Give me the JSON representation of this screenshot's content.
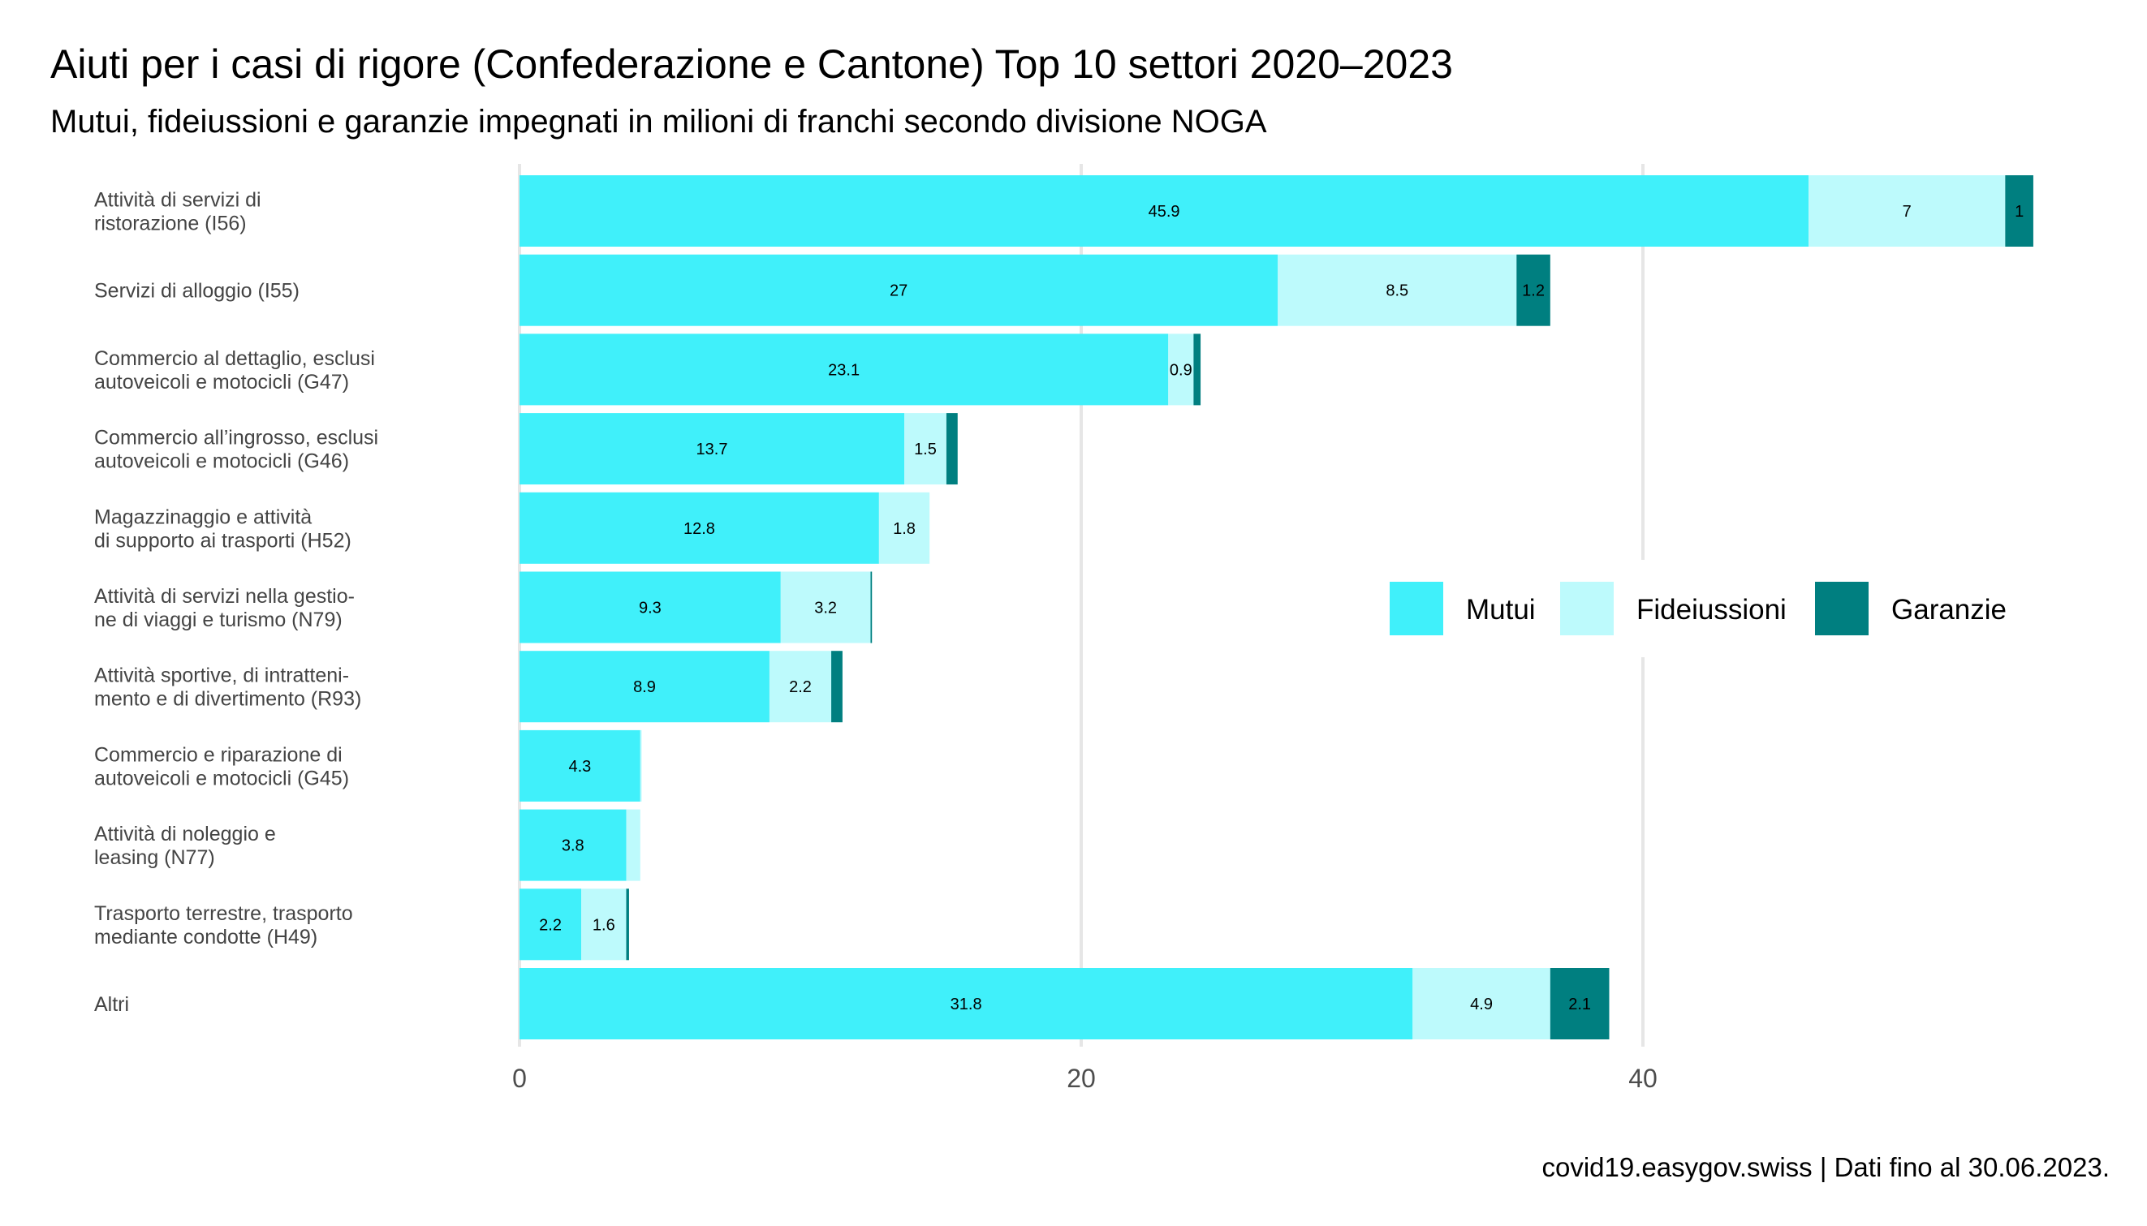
{
  "chart_data": {
    "type": "bar",
    "orientation": "horizontal",
    "stacked": true,
    "title": "Aiuti per i casi di rigore (Confederazione e Cantone) Top 10 settori 2020–2023",
    "subtitle": "Mutui, fideiussioni e garanzie impegnati in milioni di franchi secondo divisione NOGA",
    "caption": "covid19.easygov.swiss | Dati fino al 30.06.2023.",
    "categories": [
      [
        "Attività di servizi di",
        "ristorazione (I56)"
      ],
      [
        "Servizi di alloggio (I55)"
      ],
      [
        "Commercio al dettaglio, esclusi",
        "autoveicoli e motocicli (G47)"
      ],
      [
        "Commercio all’ingrosso, esclusi",
        "autoveicoli e motocicli (G46)"
      ],
      [
        "Magazzinaggio e attività",
        "di supporto ai trasporti (H52)"
      ],
      [
        "Attività di servizi nella gestio-",
        "ne di viaggi e turismo (N79)"
      ],
      [
        "Attività sportive, di intratteni-",
        "mento e di divertimento (R93)"
      ],
      [
        "Commercio e riparazione di",
        "autoveicoli e motocicli (G45)"
      ],
      [
        "Attività di noleggio e",
        "leasing (N77)"
      ],
      [
        "Trasporto terrestre, trasporto",
        "mediante condotte (H49)"
      ],
      [
        "Altri"
      ]
    ],
    "series": [
      {
        "name": "Mutui",
        "color": "#40F0FA",
        "values": [
          45.9,
          27,
          23.1,
          13.7,
          12.8,
          9.3,
          8.9,
          4.3,
          3.8,
          2.2,
          31.8
        ],
        "labels": [
          "45.9",
          "27",
          "23.1",
          "13.7",
          "12.8",
          "9.3",
          "8.9",
          "4.3",
          "3.8",
          "2.2",
          "31.8"
        ]
      },
      {
        "name": "Fideiussioni",
        "color": "#BDFAFC",
        "values": [
          7,
          8.5,
          0.9,
          1.5,
          1.8,
          3.2,
          2.2,
          0.05,
          0.5,
          1.6,
          4.9
        ],
        "labels": [
          "7",
          "8.5",
          "0.9",
          "1.5",
          "1.8",
          "3.2",
          "2.2",
          "",
          "",
          "1.6",
          "4.9"
        ]
      },
      {
        "name": "Garanzie",
        "color": "#007F80",
        "values": [
          1,
          1.2,
          0.25,
          0.4,
          0,
          0.05,
          0.4,
          0,
          0,
          0.1,
          2.1
        ],
        "labels": [
          "1",
          "1.2",
          "",
          "",
          "",
          "",
          "",
          "",
          "",
          "",
          "2.1"
        ]
      }
    ],
    "xlim": [
      0,
      54
    ],
    "xticks": [
      0,
      20,
      40
    ],
    "xlabel": "",
    "ylabel": "",
    "grid": "vertical major",
    "legend": "right, horizontal"
  }
}
